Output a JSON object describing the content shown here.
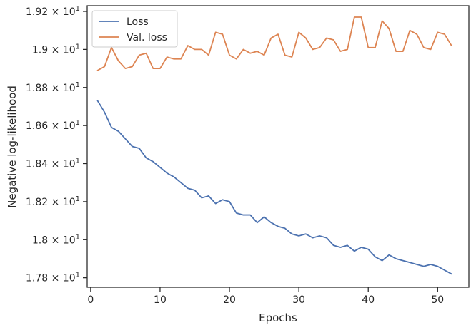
{
  "chart_data": {
    "type": "line",
    "xlabel": "Epochs",
    "ylabel": "Negative log-likelihood",
    "xlim": [
      -0.5,
      54.5
    ],
    "ylim": [
      17.75,
      19.23
    ],
    "x_ticks": [
      0,
      10,
      20,
      30,
      40,
      50
    ],
    "y_ticks": [
      {
        "value": 17.8,
        "mantissa": "1.78",
        "base": "10",
        "exp": "1"
      },
      {
        "value": 18.0,
        "mantissa": "1.8",
        "base": "10",
        "exp": "1"
      },
      {
        "value": 18.2,
        "mantissa": "1.82",
        "base": "10",
        "exp": "1"
      },
      {
        "value": 18.4,
        "mantissa": "1.84",
        "base": "10",
        "exp": "1"
      },
      {
        "value": 18.6,
        "mantissa": "1.86",
        "base": "10",
        "exp": "1"
      },
      {
        "value": 18.8,
        "mantissa": "1.88",
        "base": "10",
        "exp": "1"
      },
      {
        "value": 19.0,
        "mantissa": "1.9",
        "base": "10",
        "exp": "1"
      },
      {
        "value": 19.2,
        "mantissa": "1.92",
        "base": "10",
        "exp": "1"
      }
    ],
    "grid": false,
    "legend_position": "top-left",
    "x": [
      1,
      2,
      3,
      4,
      5,
      6,
      7,
      8,
      9,
      10,
      11,
      12,
      13,
      14,
      15,
      16,
      17,
      18,
      19,
      20,
      21,
      22,
      23,
      24,
      25,
      26,
      27,
      28,
      29,
      30,
      31,
      32,
      33,
      34,
      35,
      36,
      37,
      38,
      39,
      40,
      41,
      42,
      43,
      44,
      45,
      46,
      47,
      48,
      49,
      50,
      51,
      52
    ],
    "series": [
      {
        "name": "Loss",
        "color": "#4c72b0",
        "values": [
          18.73,
          18.67,
          18.59,
          18.57,
          18.53,
          18.49,
          18.48,
          18.43,
          18.41,
          18.38,
          18.35,
          18.33,
          18.3,
          18.27,
          18.26,
          18.22,
          18.23,
          18.19,
          18.21,
          18.2,
          18.14,
          18.13,
          18.13,
          18.09,
          18.12,
          18.09,
          18.07,
          18.06,
          18.03,
          18.02,
          18.03,
          18.01,
          18.02,
          18.01,
          17.97,
          17.96,
          17.97,
          17.94,
          17.96,
          17.95,
          17.91,
          17.89,
          17.92,
          17.9,
          17.89,
          17.88,
          17.87,
          17.86,
          17.87,
          17.86,
          17.84,
          17.82
        ]
      },
      {
        "name": "Val. loss",
        "color": "#dd8452",
        "values": [
          18.89,
          18.91,
          19.01,
          18.94,
          18.9,
          18.91,
          18.97,
          18.98,
          18.9,
          18.9,
          18.96,
          18.95,
          18.95,
          19.02,
          19.0,
          19.0,
          18.97,
          19.09,
          19.08,
          18.97,
          18.95,
          19.0,
          18.98,
          18.99,
          18.97,
          19.06,
          19.08,
          18.97,
          18.96,
          19.09,
          19.06,
          19.0,
          19.01,
          19.06,
          19.05,
          18.99,
          19.0,
          19.17,
          19.17,
          19.01,
          19.01,
          19.15,
          19.11,
          18.99,
          18.99,
          19.1,
          19.08,
          19.01,
          19.0,
          19.09,
          19.08,
          19.02
        ]
      }
    ]
  }
}
